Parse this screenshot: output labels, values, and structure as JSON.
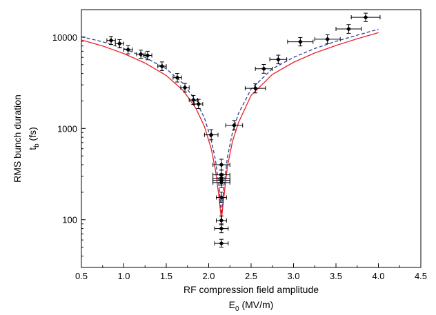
{
  "chart_data": {
    "type": "scatter",
    "title": "",
    "xlabel": {
      "line1": "RF compression field amplitude",
      "line2_base": "E",
      "line2_sub": "0",
      "line2_tail": " (MV/m)"
    },
    "ylabel": {
      "line1": "RMS bunch duration",
      "line2_base": "t",
      "line2_sub": "b",
      "line2_tail": " (fs)"
    },
    "xlim": [
      0.5,
      4.5
    ],
    "ylim": [
      30,
      20000
    ],
    "yscale": "log",
    "grid": false,
    "legend": "none",
    "x_ticks": [
      0.5,
      1.0,
      1.5,
      2.0,
      2.5,
      3.0,
      3.5,
      4.0,
      4.5
    ],
    "x_tick_labels": [
      "0.5",
      "1.0",
      "1.5",
      "2.0",
      "2.5",
      "3.0",
      "3.5",
      "4.0",
      "4.5"
    ],
    "y_ticks": [
      100,
      1000,
      10000
    ],
    "y_tick_labels": [
      "100",
      "1000",
      "10000"
    ],
    "colors": {
      "measured": "#000000",
      "solid_curve": "#e8202a",
      "dashed_curve": "#2b3e8c"
    },
    "series": [
      {
        "marker": "diamond",
        "points": [
          {
            "x": 0.85,
            "y": 9200,
            "xerr": 0.05,
            "yerr_lo": 900,
            "yerr_hi": 1000
          },
          {
            "x": 0.95,
            "y": 8500,
            "xerr": 0.05,
            "yerr_lo": 850,
            "yerr_hi": 900
          },
          {
            "x": 1.05,
            "y": 7300,
            "xerr": 0.05,
            "yerr_lo": 750,
            "yerr_hi": 800
          },
          {
            "x": 1.2,
            "y": 6500,
            "xerr": 0.05,
            "yerr_lo": 650,
            "yerr_hi": 700
          },
          {
            "x": 1.28,
            "y": 6300,
            "xerr": 0.05,
            "yerr_lo": 650,
            "yerr_hi": 700
          },
          {
            "x": 1.45,
            "y": 4800,
            "xerr": 0.05,
            "yerr_lo": 500,
            "yerr_hi": 550
          },
          {
            "x": 1.63,
            "y": 3600,
            "xerr": 0.05,
            "yerr_lo": 380,
            "yerr_hi": 400
          },
          {
            "x": 1.72,
            "y": 2800,
            "xerr": 0.05,
            "yerr_lo": 300,
            "yerr_hi": 320
          },
          {
            "x": 1.82,
            "y": 2050,
            "xerr": 0.05,
            "yerr_lo": 220,
            "yerr_hi": 250
          },
          {
            "x": 1.88,
            "y": 1850,
            "xerr": 0.05,
            "yerr_lo": 200,
            "yerr_hi": 230
          },
          {
            "x": 2.03,
            "y": 850,
            "xerr": 0.08,
            "yerr_lo": 100,
            "yerr_hi": 120
          },
          {
            "x": 2.15,
            "y": 400,
            "xerr": 0.1,
            "yerr_lo": 50,
            "yerr_hi": 60
          },
          {
            "x": 2.15,
            "y": 310,
            "xerr": 0.1,
            "yerr_lo": 35,
            "yerr_hi": 40
          },
          {
            "x": 2.15,
            "y": 285,
            "xerr": 0.1,
            "yerr_lo": 30,
            "yerr_hi": 35
          },
          {
            "x": 2.15,
            "y": 270,
            "xerr": 0.1,
            "yerr_lo": 30,
            "yerr_hi": 35
          },
          {
            "x": 2.15,
            "y": 255,
            "xerr": 0.1,
            "yerr_lo": 30,
            "yerr_hi": 35
          },
          {
            "x": 2.15,
            "y": 175,
            "xerr": 0.06,
            "yerr_lo": 20,
            "yerr_hi": 25
          },
          {
            "x": 2.15,
            "y": 98,
            "xerr": 0.06,
            "yerr_lo": 10,
            "yerr_hi": 12
          },
          {
            "x": 2.15,
            "y": 80,
            "xerr": 0.08,
            "yerr_lo": 8,
            "yerr_hi": 10
          },
          {
            "x": 2.15,
            "y": 55,
            "xerr": 0.08,
            "yerr_lo": 5,
            "yerr_hi": 6
          },
          {
            "x": 2.3,
            "y": 1080,
            "xerr": 0.1,
            "yerr_lo": 120,
            "yerr_hi": 140
          },
          {
            "x": 2.55,
            "y": 2750,
            "xerr": 0.12,
            "yerr_lo": 300,
            "yerr_hi": 330
          },
          {
            "x": 2.65,
            "y": 4500,
            "xerr": 0.1,
            "yerr_lo": 480,
            "yerr_hi": 520
          },
          {
            "x": 2.82,
            "y": 5700,
            "xerr": 0.1,
            "yerr_lo": 600,
            "yerr_hi": 650
          },
          {
            "x": 3.08,
            "y": 8900,
            "xerr": 0.15,
            "yerr_lo": 900,
            "yerr_hi": 1000
          },
          {
            "x": 3.4,
            "y": 9500,
            "xerr": 0.15,
            "yerr_lo": 1000,
            "yerr_hi": 1100
          },
          {
            "x": 3.65,
            "y": 12300,
            "xerr": 0.15,
            "yerr_lo": 1300,
            "yerr_hi": 1400
          },
          {
            "x": 3.85,
            "y": 16500,
            "xerr": 0.17,
            "yerr_lo": 1700,
            "yerr_hi": 1800
          }
        ]
      }
    ],
    "curves": [
      {
        "style": "dashed",
        "points": [
          [
            0.5,
            10100
          ],
          [
            0.75,
            8900
          ],
          [
            1.0,
            7500
          ],
          [
            1.25,
            6000
          ],
          [
            1.5,
            4500
          ],
          [
            1.7,
            3100
          ],
          [
            1.85,
            2000
          ],
          [
            1.95,
            1300
          ],
          [
            2.03,
            750
          ],
          [
            2.08,
            450
          ],
          [
            2.12,
            240
          ],
          [
            2.15,
            115
          ],
          [
            2.18,
            230
          ],
          [
            2.22,
            480
          ],
          [
            2.28,
            900
          ],
          [
            2.35,
            1450
          ],
          [
            2.5,
            2700
          ],
          [
            2.75,
            4500
          ],
          [
            3.0,
            6000
          ],
          [
            3.25,
            7500
          ],
          [
            3.5,
            9000
          ],
          [
            3.75,
            10500
          ],
          [
            4.0,
            12200
          ]
        ]
      },
      {
        "style": "solid",
        "points": [
          [
            0.5,
            9300
          ],
          [
            0.75,
            8000
          ],
          [
            1.0,
            6600
          ],
          [
            1.25,
            5200
          ],
          [
            1.5,
            3800
          ],
          [
            1.7,
            2600
          ],
          [
            1.85,
            1650
          ],
          [
            1.95,
            1050
          ],
          [
            2.03,
            600
          ],
          [
            2.08,
            350
          ],
          [
            2.12,
            180
          ],
          [
            2.15,
            100
          ],
          [
            2.18,
            180
          ],
          [
            2.22,
            380
          ],
          [
            2.28,
            720
          ],
          [
            2.35,
            1150
          ],
          [
            2.5,
            2300
          ],
          [
            2.75,
            3900
          ],
          [
            3.0,
            5300
          ],
          [
            3.25,
            6700
          ],
          [
            3.5,
            8100
          ],
          [
            3.75,
            9600
          ],
          [
            4.0,
            11200
          ]
        ]
      }
    ]
  }
}
